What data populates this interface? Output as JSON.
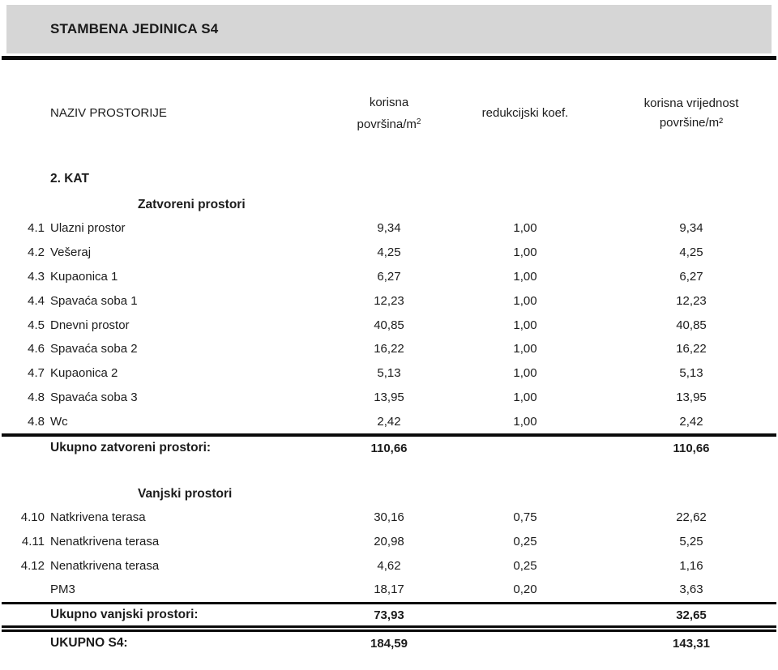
{
  "title": "STAMBENA JEDINICA S4",
  "colors": {
    "header_band": "#d6d6d6",
    "rule": "#0a0a0a",
    "text": "#1c1c1c"
  },
  "columns": {
    "name": "NAZIV PROSTORIJE",
    "area_line1": "korisna",
    "area_line2_base": "površina/m",
    "area_sup": "2",
    "koef": "redukcijski koef.",
    "value_line1": "korisna vrijednost",
    "value_line2": "površine/m²"
  },
  "floor_label": "2. KAT",
  "closed": {
    "header": "Zatvoreni prostori",
    "rows": [
      {
        "num": "4.1",
        "name": "Ulazni prostor",
        "area": "9,34",
        "koef": "1,00",
        "value": "9,34"
      },
      {
        "num": "4.2",
        "name": "Vešeraj",
        "area": "4,25",
        "koef": "1,00",
        "value": "4,25"
      },
      {
        "num": "4.3",
        "name": "Kupaonica 1",
        "area": "6,27",
        "koef": "1,00",
        "value": "6,27"
      },
      {
        "num": "4.4",
        "name": "Spavaća soba 1",
        "area": "12,23",
        "koef": "1,00",
        "value": "12,23"
      },
      {
        "num": "4.5",
        "name": "Dnevni prostor",
        "area": "40,85",
        "koef": "1,00",
        "value": "40,85"
      },
      {
        "num": "4.6",
        "name": "Spavaća soba 2",
        "area": "16,22",
        "koef": "1,00",
        "value": "16,22"
      },
      {
        "num": "4.7",
        "name": "Kupaonica 2",
        "area": "5,13",
        "koef": "1,00",
        "value": "5,13"
      },
      {
        "num": "4.8",
        "name": "Spavaća soba 3",
        "area": "13,95",
        "koef": "1,00",
        "value": "13,95"
      },
      {
        "num": "4.8",
        "name": "Wc",
        "area": "2,42",
        "koef": "1,00",
        "value": "2,42"
      }
    ],
    "total": {
      "label": "Ukupno zatvoreni prostori:",
      "area": "110,66",
      "value": "110,66"
    }
  },
  "outdoor": {
    "header": "Vanjski prostori",
    "rows": [
      {
        "num": "4.10",
        "name": "Natkrivena terasa",
        "area": "30,16",
        "koef": "0,75",
        "value": "22,62"
      },
      {
        "num": "4.11",
        "name": "Nenatkrivena terasa",
        "area": "20,98",
        "koef": "0,25",
        "value": "5,25"
      },
      {
        "num": "4.12",
        "name": "Nenatkrivena terasa",
        "area": "4,62",
        "koef": "0,25",
        "value": "1,16"
      },
      {
        "num": "",
        "name": "PM3",
        "area": "18,17",
        "koef": "0,20",
        "value": "3,63"
      }
    ],
    "total": {
      "label": "Ukupno vanjski prostori:",
      "area": "73,93",
      "value": "32,65"
    }
  },
  "grand_total": {
    "label": "UKUPNO S4:",
    "area": "184,59",
    "value": "143,31"
  }
}
